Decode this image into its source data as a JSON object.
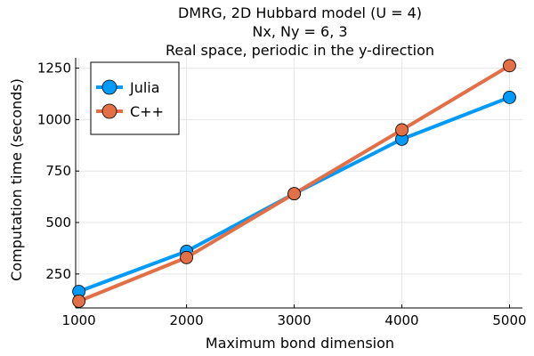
{
  "chart_data": {
    "type": "line",
    "title_lines": [
      "DMRG, 2D Hubbard model (U = 4)",
      "Nx, Ny = 6, 3",
      "Real space, periodic in the y-direction"
    ],
    "xlabel": "Maximum bond dimension",
    "ylabel": "Computation time (seconds)",
    "x": [
      1000,
      2000,
      3000,
      4000,
      5000
    ],
    "x_ticks": [
      1000,
      2000,
      3000,
      4000,
      5000
    ],
    "x_tick_labels": [
      "1000",
      "2000",
      "3000",
      "4000",
      "5000"
    ],
    "y_ticks": [
      250,
      500,
      750,
      1000,
      1250
    ],
    "y_tick_labels": [
      "250",
      "500",
      "750",
      "1000",
      "1250"
    ],
    "xlim": [
      970,
      5120
    ],
    "ylim": [
      85,
      1300
    ],
    "grid": true,
    "legend_position": "top-left",
    "series": [
      {
        "name": "Julia",
        "color": "#009af9",
        "values": [
          165,
          360,
          640,
          905,
          1108
        ]
      },
      {
        "name": "C++",
        "color": "#e26f46",
        "values": [
          118,
          330,
          640,
          950,
          1262
        ]
      }
    ]
  }
}
